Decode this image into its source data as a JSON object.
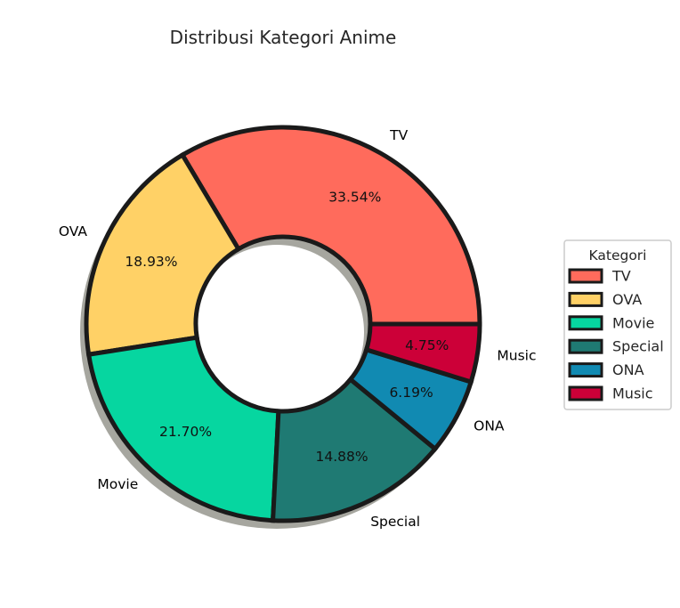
{
  "chart_data": {
    "type": "pie",
    "title": "Distribusi Kategori Anime",
    "categories": [
      "TV",
      "OVA",
      "Movie",
      "Special",
      "ONA",
      "Music"
    ],
    "values": [
      33.54,
      18.93,
      21.7,
      14.88,
      6.19,
      4.75
    ],
    "value_labels": [
      "33.54%",
      "18.93%",
      "21.70%",
      "14.88%",
      "6.19%",
      "4.75%"
    ],
    "colors": [
      "#FF6B5C",
      "#FFD166",
      "#06D6A0",
      "#1F7A73",
      "#118AB2",
      "#CC0038"
    ],
    "donut": true,
    "shadow": true,
    "legend": {
      "title": "Kategori",
      "placement": "right",
      "entries": [
        "TV",
        "OVA",
        "Movie",
        "Special",
        "ONA",
        "Music"
      ]
    }
  }
}
